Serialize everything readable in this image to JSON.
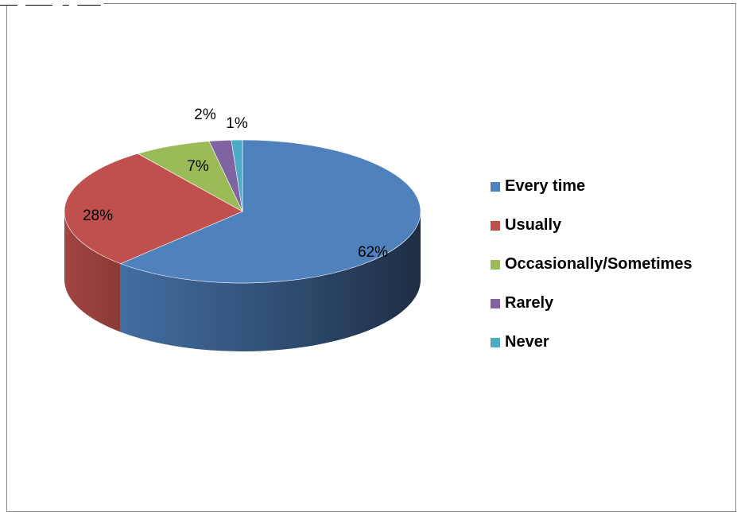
{
  "chart_data": {
    "type": "pie",
    "style": "3d",
    "title": "",
    "categories": [
      "Every time",
      "Usually",
      "Occasionally/Sometimes",
      "Rarely",
      "Never"
    ],
    "values": [
      62,
      28,
      7,
      2,
      1
    ],
    "data_labels": [
      "62%",
      "28%",
      "7%",
      "2%",
      "1%"
    ],
    "unit": "%",
    "colors": [
      "#4f81bd",
      "#c0504d",
      "#9bbb59",
      "#8064a2",
      "#4bacc6"
    ],
    "legend_position": "right"
  }
}
